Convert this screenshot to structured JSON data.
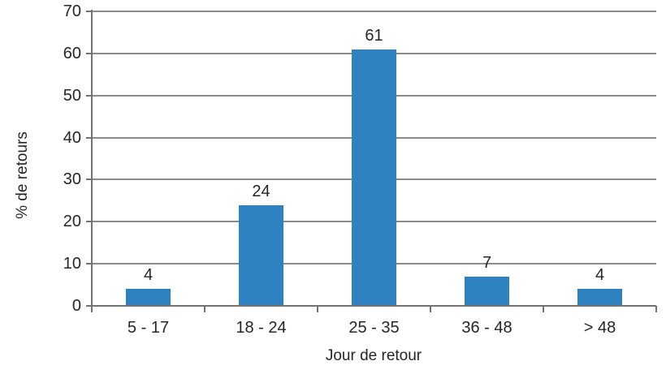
{
  "chart_data": {
    "type": "bar",
    "title": "",
    "categories": [
      "5 - 17",
      "18 - 24",
      "25 - 35",
      "36 - 48",
      "> 48"
    ],
    "values": [
      4,
      24,
      61,
      7,
      4
    ],
    "xlabel": "Jour de retour",
    "ylabel": "% de retours",
    "ylim": [
      0,
      70
    ],
    "yticks": [
      0,
      10,
      20,
      30,
      40,
      50,
      60,
      70
    ],
    "grid": "horizontal",
    "legend": "none",
    "data_labels_shown": true,
    "colors": {
      "bar": "#2E82C0",
      "gridline": "#8C8C8C",
      "axis": "#737373",
      "text": "#262626"
    }
  }
}
